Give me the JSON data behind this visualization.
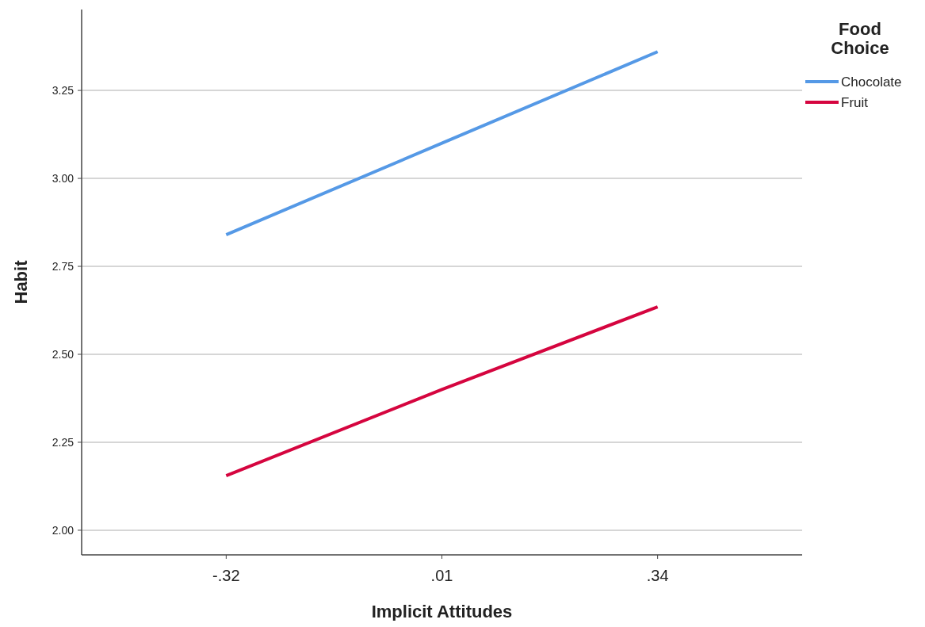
{
  "chart_data": {
    "type": "line",
    "xlabel": "Implicit Attitudes",
    "ylabel": "Habit",
    "legend_title": "Food Choice",
    "categories": [
      "-.32",
      ".01",
      ".34"
    ],
    "series": [
      {
        "name": "Chocolate",
        "color": "#5599e6",
        "values": [
          2.84,
          3.1,
          3.36
        ]
      },
      {
        "name": "Fruit",
        "color": "#d5053f",
        "values": [
          2.155,
          2.4,
          2.635
        ]
      }
    ],
    "ylim": [
      1.93,
      3.48
    ],
    "yticks": [
      {
        "value": 2,
        "label": "2.00"
      },
      {
        "value": 2.25,
        "label": "2.25"
      },
      {
        "value": 2.5,
        "label": "2.50"
      },
      {
        "value": 2.75,
        "label": "2.75"
      },
      {
        "value": 3,
        "label": "3.00"
      },
      {
        "value": 3.25,
        "label": "3.25"
      }
    ],
    "grid": "y",
    "legend": "top right",
    "marker": "none",
    "line_style": "solid"
  }
}
